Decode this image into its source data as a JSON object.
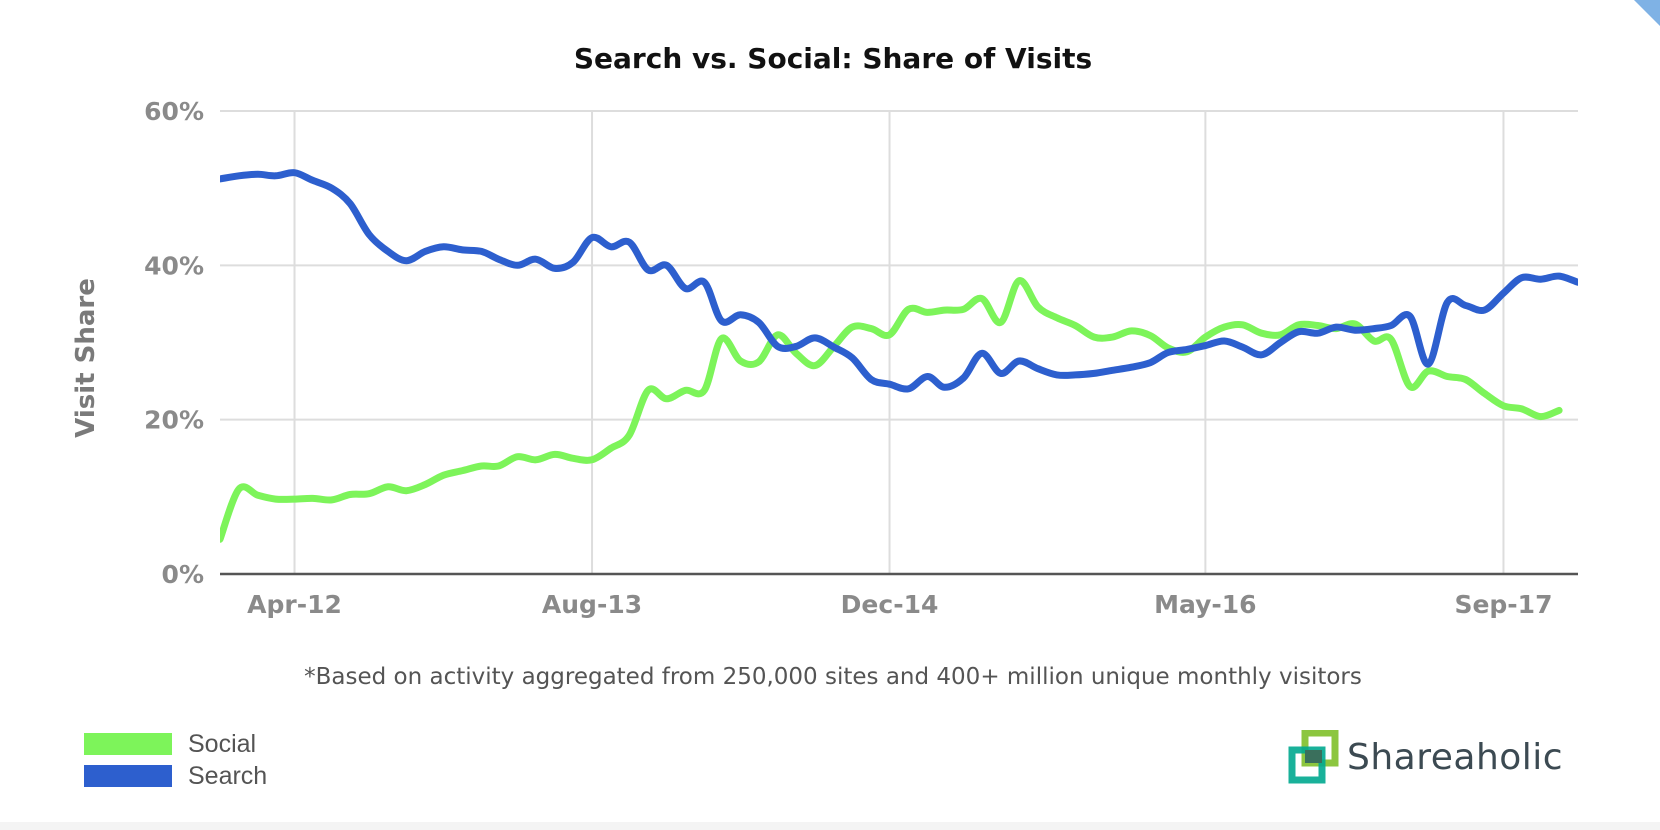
{
  "chart_data": {
    "type": "line",
    "title": "Search vs. Social: Share of Visits",
    "ylabel": "Visit Share",
    "xlabel": "",
    "ylim": [
      0,
      60
    ],
    "yticks": [
      0,
      20,
      40,
      60
    ],
    "ytick_labels": [
      "0%",
      "20%",
      "40%",
      "60%"
    ],
    "xlim": [
      "2011-12",
      "2018-01"
    ],
    "xticks": [
      "2012-04",
      "2013-08",
      "2014-12",
      "2016-05",
      "2017-09"
    ],
    "xtick_labels": [
      "Apr-12",
      "Aug-13",
      "Dec-14",
      "May-16",
      "Sep-17"
    ],
    "grid": true,
    "footnote": "*Based on activity aggregated from 250,000 sites and 400+ million unique monthly visitors",
    "series": [
      {
        "name": "Social",
        "color": "#7df45a",
        "points": [
          [
            "2011-12-01",
            4.5
          ],
          [
            "2012-01-01",
            11
          ],
          [
            "2012-02-01",
            10.2
          ],
          [
            "2012-03-01",
            9.7
          ],
          [
            "2012-04-01",
            9.7
          ],
          [
            "2012-05-01",
            9.8
          ],
          [
            "2012-06-01",
            9.6
          ],
          [
            "2012-07-01",
            10.3
          ],
          [
            "2012-08-01",
            10.4
          ],
          [
            "2012-09-01",
            11.3
          ],
          [
            "2012-10-01",
            10.8
          ],
          [
            "2012-11-01",
            11.6
          ],
          [
            "2012-12-01",
            12.8
          ],
          [
            "2013-01-01",
            13.4
          ],
          [
            "2013-02-01",
            14.0
          ],
          [
            "2013-03-01",
            14.0
          ],
          [
            "2013-04-01",
            15.2
          ],
          [
            "2013-05-01",
            14.8
          ],
          [
            "2013-06-01",
            15.5
          ],
          [
            "2013-07-01",
            15.0
          ],
          [
            "2013-08-01",
            14.8
          ],
          [
            "2013-09-01",
            16.3
          ],
          [
            "2013-10-01",
            18.0
          ],
          [
            "2013-11-01",
            23.8
          ],
          [
            "2013-12-01",
            22.7
          ],
          [
            "2014-01-01",
            23.8
          ],
          [
            "2014-02-01",
            23.8
          ],
          [
            "2014-03-01",
            30.5
          ],
          [
            "2014-04-01",
            27.6
          ],
          [
            "2014-05-01",
            27.5
          ],
          [
            "2014-06-01",
            31.0
          ],
          [
            "2014-07-01",
            28.6
          ],
          [
            "2014-08-01",
            27.0
          ],
          [
            "2014-09-01",
            29.5
          ],
          [
            "2014-10-01",
            32.0
          ],
          [
            "2014-11-01",
            31.8
          ],
          [
            "2014-12-01",
            31.0
          ],
          [
            "2015-01-01",
            34.3
          ],
          [
            "2015-02-01",
            33.9
          ],
          [
            "2015-03-01",
            34.2
          ],
          [
            "2015-04-01",
            34.3
          ],
          [
            "2015-05-01",
            35.7
          ],
          [
            "2015-06-01",
            32.6
          ],
          [
            "2015-07-01",
            38.0
          ],
          [
            "2015-08-01",
            34.6
          ],
          [
            "2015-09-01",
            33.2
          ],
          [
            "2015-10-01",
            32.2
          ],
          [
            "2015-11-01",
            30.7
          ],
          [
            "2015-12-01",
            30.7
          ],
          [
            "2016-01-01",
            31.5
          ],
          [
            "2016-02-01",
            30.9
          ],
          [
            "2016-03-01",
            29.3
          ],
          [
            "2016-04-01",
            28.8
          ],
          [
            "2016-05-01",
            30.7
          ],
          [
            "2016-06-01",
            32.0
          ],
          [
            "2016-07-01",
            32.3
          ],
          [
            "2016-08-01",
            31.2
          ],
          [
            "2016-09-01",
            31.0
          ],
          [
            "2016-10-01",
            32.3
          ],
          [
            "2016-11-01",
            32.2
          ],
          [
            "2016-12-01",
            31.8
          ],
          [
            "2017-01-01",
            32.4
          ],
          [
            "2017-02-01",
            30.2
          ],
          [
            "2017-03-01",
            30.4
          ],
          [
            "2017-04-01",
            24.3
          ],
          [
            "2017-05-01",
            26.3
          ],
          [
            "2017-06-01",
            25.6
          ],
          [
            "2017-07-01",
            25.2
          ],
          [
            "2017-08-01",
            23.4
          ],
          [
            "2017-09-01",
            21.8
          ],
          [
            "2017-10-01",
            21.4
          ],
          [
            "2017-11-01",
            20.4
          ],
          [
            "2017-12-01",
            21.2
          ]
        ]
      },
      {
        "name": "Search",
        "color": "#2d5fce",
        "points": [
          [
            "2011-12-01",
            51.2
          ],
          [
            "2012-01-01",
            51.6
          ],
          [
            "2012-02-01",
            51.8
          ],
          [
            "2012-03-01",
            51.6
          ],
          [
            "2012-04-01",
            52.0
          ],
          [
            "2012-05-01",
            51.0
          ],
          [
            "2012-06-01",
            50.0
          ],
          [
            "2012-07-01",
            48.0
          ],
          [
            "2012-08-01",
            44.0
          ],
          [
            "2012-09-01",
            41.8
          ],
          [
            "2012-10-01",
            40.6
          ],
          [
            "2012-11-01",
            41.8
          ],
          [
            "2012-12-01",
            42.4
          ],
          [
            "2013-01-01",
            42.0
          ],
          [
            "2013-02-01",
            41.8
          ],
          [
            "2013-03-01",
            40.8
          ],
          [
            "2013-04-01",
            40.0
          ],
          [
            "2013-05-01",
            40.8
          ],
          [
            "2013-06-01",
            39.6
          ],
          [
            "2013-07-01",
            40.4
          ],
          [
            "2013-08-01",
            43.6
          ],
          [
            "2013-09-01",
            42.4
          ],
          [
            "2013-10-01",
            43.0
          ],
          [
            "2013-11-01",
            39.4
          ],
          [
            "2013-12-01",
            40.0
          ],
          [
            "2014-01-01",
            37.0
          ],
          [
            "2014-02-01",
            37.8
          ],
          [
            "2014-03-01",
            32.8
          ],
          [
            "2014-04-01",
            33.6
          ],
          [
            "2014-05-01",
            32.6
          ],
          [
            "2014-06-01",
            29.5
          ],
          [
            "2014-07-01",
            29.5
          ],
          [
            "2014-08-01",
            30.6
          ],
          [
            "2014-09-01",
            29.4
          ],
          [
            "2014-10-01",
            28.0
          ],
          [
            "2014-11-01",
            25.2
          ],
          [
            "2014-12-01",
            24.6
          ],
          [
            "2015-01-01",
            24.0
          ],
          [
            "2015-02-01",
            25.6
          ],
          [
            "2015-03-01",
            24.2
          ],
          [
            "2015-04-01",
            25.4
          ],
          [
            "2015-05-01",
            28.6
          ],
          [
            "2015-06-01",
            26.0
          ],
          [
            "2015-07-01",
            27.6
          ],
          [
            "2015-08-01",
            26.6
          ],
          [
            "2015-09-01",
            25.8
          ],
          [
            "2015-10-01",
            25.8
          ],
          [
            "2015-11-01",
            26.0
          ],
          [
            "2015-12-01",
            26.4
          ],
          [
            "2016-01-01",
            26.8
          ],
          [
            "2016-02-01",
            27.4
          ],
          [
            "2016-03-01",
            28.7
          ],
          [
            "2016-04-01",
            29.1
          ],
          [
            "2016-05-01",
            29.6
          ],
          [
            "2016-06-01",
            30.2
          ],
          [
            "2016-07-01",
            29.4
          ],
          [
            "2016-08-01",
            28.4
          ],
          [
            "2016-09-01",
            30.0
          ],
          [
            "2016-10-01",
            31.4
          ],
          [
            "2016-11-01",
            31.2
          ],
          [
            "2016-12-01",
            32.0
          ],
          [
            "2017-01-01",
            31.6
          ],
          [
            "2017-02-01",
            31.8
          ],
          [
            "2017-03-01",
            32.2
          ],
          [
            "2017-04-01",
            33.4
          ],
          [
            "2017-05-01",
            27.2
          ],
          [
            "2017-06-01",
            35.2
          ],
          [
            "2017-07-01",
            34.8
          ],
          [
            "2017-08-01",
            34.2
          ],
          [
            "2017-09-01",
            36.4
          ],
          [
            "2017-10-01",
            38.4
          ],
          [
            "2017-11-01",
            38.2
          ],
          [
            "2017-12-01",
            38.6
          ],
          [
            "2018-01-01",
            37.8
          ]
        ]
      }
    ]
  },
  "branding": {
    "name": "Shareaholic",
    "logo_icon": "interlocking-squares-icon",
    "logo_colors": [
      "#8cc63f",
      "#00a88f",
      "#3a6f5c"
    ]
  }
}
